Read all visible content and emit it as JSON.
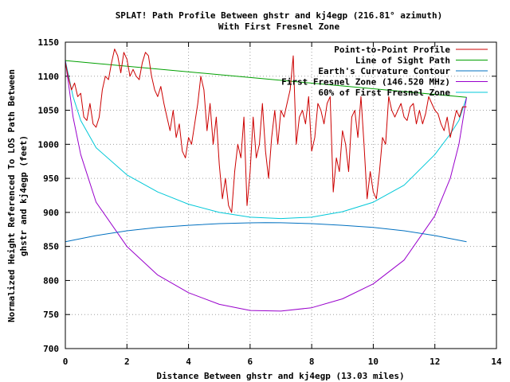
{
  "chart_data": {
    "type": "line",
    "title": "SPLAT! Path Profile Between ghstr and kj4egp (216.81° azimuth)",
    "subtitle": "With First Fresnel Zone",
    "xlabel": "Distance Between ghstr and kj4egp (13.03 miles)",
    "ylabel_line1": "Normalized Height Referenced To LOS Path Between",
    "ylabel_line2": "ghstr and kj4egp (feet)",
    "xlim": [
      0,
      14
    ],
    "ylim": [
      700,
      1150
    ],
    "x_ticks": [
      0,
      2,
      4,
      6,
      8,
      10,
      12,
      14
    ],
    "y_ticks": [
      700,
      750,
      800,
      850,
      900,
      950,
      1000,
      1050,
      1100,
      1150
    ],
    "x_tick_labels": [
      "0",
      "2",
      "4",
      "6",
      "8",
      "10",
      "12",
      "14"
    ],
    "y_tick_labels": [
      "700",
      "750",
      "800",
      "850",
      "900",
      "950",
      "1000",
      "1050",
      "1100",
      "1150"
    ],
    "grid": true,
    "legend_position": "top-right",
    "series": [
      {
        "name": "Point-to-Point Profile",
        "color": "#cc0000",
        "x": [
          0,
          0.1,
          0.2,
          0.3,
          0.4,
          0.5,
          0.6,
          0.7,
          0.8,
          0.9,
          1.0,
          1.1,
          1.2,
          1.3,
          1.4,
          1.5,
          1.6,
          1.7,
          1.8,
          1.9,
          2.0,
          2.1,
          2.2,
          2.3,
          2.4,
          2.5,
          2.6,
          2.7,
          2.8,
          2.9,
          3.0,
          3.1,
          3.2,
          3.3,
          3.4,
          3.5,
          3.6,
          3.7,
          3.8,
          3.9,
          4.0,
          4.1,
          4.2,
          4.3,
          4.4,
          4.5,
          4.6,
          4.7,
          4.8,
          4.9,
          5.0,
          5.1,
          5.2,
          5.3,
          5.4,
          5.5,
          5.6,
          5.7,
          5.8,
          5.9,
          6.0,
          6.1,
          6.2,
          6.3,
          6.4,
          6.5,
          6.6,
          6.7,
          6.8,
          6.9,
          7.0,
          7.1,
          7.2,
          7.3,
          7.4,
          7.5,
          7.6,
          7.7,
          7.8,
          7.9,
          8.0,
          8.1,
          8.2,
          8.3,
          8.4,
          8.5,
          8.6,
          8.7,
          8.8,
          8.9,
          9.0,
          9.1,
          9.2,
          9.3,
          9.4,
          9.5,
          9.6,
          9.7,
          9.8,
          9.9,
          10.0,
          10.1,
          10.2,
          10.3,
          10.4,
          10.5,
          10.6,
          10.7,
          10.8,
          10.9,
          11.0,
          11.1,
          11.2,
          11.3,
          11.4,
          11.5,
          11.6,
          11.7,
          11.8,
          11.9,
          12.0,
          12.1,
          12.2,
          12.3,
          12.4,
          12.5,
          12.6,
          12.7,
          12.8,
          12.9,
          13.03
        ],
        "y": [
          1120,
          1098,
          1080,
          1090,
          1070,
          1075,
          1040,
          1035,
          1060,
          1030,
          1025,
          1040,
          1080,
          1100,
          1095,
          1120,
          1140,
          1130,
          1105,
          1135,
          1125,
          1100,
          1110,
          1100,
          1095,
          1120,
          1135,
          1130,
          1100,
          1080,
          1070,
          1085,
          1060,
          1040,
          1020,
          1050,
          1010,
          1030,
          990,
          980,
          1010,
          1000,
          1030,
          1060,
          1100,
          1080,
          1020,
          1060,
          1000,
          1040,
          970,
          920,
          950,
          910,
          900,
          960,
          1000,
          980,
          1040,
          910,
          960,
          1040,
          980,
          1000,
          1060,
          990,
          950,
          1010,
          1050,
          1000,
          1050,
          1040,
          1060,
          1080,
          1130,
          1000,
          1040,
          1050,
          1030,
          1070,
          990,
          1010,
          1060,
          1050,
          1030,
          1060,
          1070,
          930,
          980,
          960,
          1020,
          1000,
          960,
          1040,
          1050,
          1010,
          1070,
          1000,
          920,
          960,
          930,
          920,
          960,
          1010,
          1000,
          1070,
          1050,
          1040,
          1050,
          1060,
          1040,
          1035,
          1055,
          1060,
          1030,
          1050,
          1030,
          1045,
          1070,
          1060,
          1050,
          1045,
          1030,
          1020,
          1040,
          1010,
          1030,
          1050,
          1040,
          1055,
          1055
        ]
      },
      {
        "name": "Line of Sight Path",
        "color": "#00a000",
        "x": [
          0,
          13.03
        ],
        "y": [
          1123,
          1069
        ]
      },
      {
        "name": "Earth's Curvature Contour",
        "color": "#0070c0",
        "x": [
          0,
          1,
          2,
          3,
          4,
          5,
          6,
          6.5,
          7,
          8,
          9,
          10,
          11,
          12,
          13.03
        ],
        "y": [
          857,
          866,
          873,
          878,
          881,
          883.5,
          884.7,
          885,
          884.8,
          883.5,
          881,
          878,
          873,
          866,
          857
        ]
      },
      {
        "name": "First Fresnel Zone (146.520 MHz)",
        "color": "#9900cc",
        "x": [
          0,
          0.25,
          0.5,
          1,
          2,
          3,
          4,
          5,
          6,
          7,
          8,
          9,
          10,
          11,
          12,
          12.5,
          12.78,
          13.03
        ],
        "y": [
          1123,
          1040,
          985,
          915,
          850,
          808,
          782,
          765,
          756,
          755,
          760,
          773,
          795,
          830,
          895,
          950,
          1000,
          1069
        ]
      },
      {
        "name": "60% of First Fresnel Zone",
        "color": "#00c8d8",
        "x": [
          0,
          0.25,
          0.5,
          1,
          2,
          3,
          4,
          5,
          6,
          7,
          8,
          9,
          10,
          11,
          12,
          12.5,
          12.78,
          13.03
        ],
        "y": [
          1123,
          1070,
          1035,
          995,
          955,
          930,
          912,
          900,
          893,
          891,
          893,
          901,
          915,
          940,
          985,
          1015,
          1035,
          1069
        ]
      }
    ]
  }
}
